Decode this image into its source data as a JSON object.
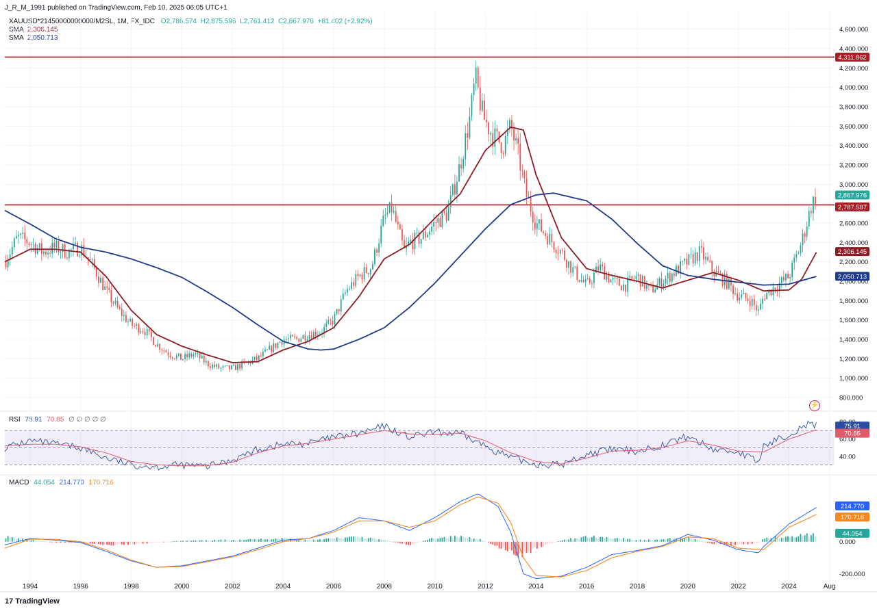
{
  "header": {
    "published": "J_R_M_1991 published on TradingView.com, Feb 10, 2025 06:05 UTC+1",
    "symbol": "XAUUSD*21450000000000/M2SL, 1M, FX_IDC",
    "ohlc": {
      "o": "O2,786.574",
      "h": "H2,875.596",
      "l": "L2,761.412",
      "c": "C2,867.976",
      "chg": "+81.402 (+2.92%)"
    },
    "sma1": {
      "label": "SMA",
      "value": "2,306.145"
    },
    "sma2": {
      "label": "SMA",
      "value": "2,050.713"
    }
  },
  "rsi_header": {
    "label": "RSI",
    "v1": "75.91",
    "v2": "70.85",
    "empties": "∅ ∅ ∅ ∅ ∅"
  },
  "macd_header": {
    "label": "MACD",
    "hist": "44.054",
    "macd": "214.770",
    "signal": "170.716"
  },
  "footer": {
    "logo": "TradingView"
  },
  "colors": {
    "up": "#26a69a",
    "down": "#ef5350",
    "sma_fast": "#8e1b23",
    "sma_slow": "#1f3a8a",
    "resistance": "#a61e26",
    "rsi": "#2b4f9e",
    "rsi_ma": "#e25a6a",
    "macd": "#2962ff",
    "signal": "#f6891f"
  },
  "chart_data": [
    {
      "type": "candlestick",
      "title": "XAUUSD*21450000000000/M2SL, 1M, FX_IDC",
      "y_axis_side": "right",
      "ylim": [
        680,
        4760
      ],
      "y_ticks": [
        "4,600.000",
        "4,400.000",
        "4,200.000",
        "4,000.000",
        "3,800.000",
        "3,600.000",
        "3,400.000",
        "3,200.000",
        "3,000.000",
        "2,600.000",
        "2,400.000",
        "2,200.000",
        "2,000.000",
        "1,800.000",
        "1,600.000",
        "1,400.000",
        "1,200.000",
        "1,000.000",
        "800.000"
      ],
      "x_ticks": [
        "1994",
        "1996",
        "1998",
        "2000",
        "2002",
        "2004",
        "2006",
        "2008",
        "2010",
        "2012",
        "2014",
        "2016",
        "2018",
        "2020",
        "2022",
        "2024",
        "Aug"
      ],
      "price_series_approx": {
        "x": [
          1993.0,
          1993.5,
          1994.0,
          1994.5,
          1995.0,
          1995.5,
          1996.0,
          1996.5,
          1997.0,
          1997.5,
          1998.0,
          1998.5,
          1999.0,
          1999.5,
          2000.0,
          2000.5,
          2001.0,
          2001.5,
          2002.0,
          2002.5,
          2003.0,
          2003.5,
          2004.0,
          2004.5,
          2005.0,
          2005.5,
          2006.0,
          2006.5,
          2007.0,
          2007.5,
          2008.0,
          2008.3,
          2008.8,
          2009.0,
          2009.5,
          2010.0,
          2010.5,
          2011.0,
          2011.4,
          2011.6,
          2011.9,
          2012.3,
          2012.7,
          2013.0,
          2013.3,
          2013.6,
          2014.0,
          2014.5,
          2015.0,
          2015.5,
          2016.0,
          2016.5,
          2017.0,
          2017.5,
          2018.0,
          2018.5,
          2019.0,
          2019.5,
          2020.0,
          2020.5,
          2021.0,
          2021.5,
          2022.0,
          2022.5,
          2022.8,
          2023.0,
          2023.5,
          2024.0,
          2024.5,
          2024.9,
          2025.1
        ],
        "values": [
          2200,
          2450,
          2400,
          2300,
          2350,
          2300,
          2350,
          2150,
          1900,
          1700,
          1550,
          1500,
          1350,
          1250,
          1200,
          1250,
          1150,
          1100,
          1100,
          1150,
          1200,
          1300,
          1400,
          1400,
          1450,
          1480,
          1600,
          1900,
          2050,
          2150,
          2650,
          2750,
          2300,
          2400,
          2450,
          2600,
          2700,
          3200,
          3700,
          4100,
          3700,
          3500,
          3400,
          3600,
          3300,
          2900,
          2600,
          2450,
          2300,
          2100,
          1950,
          2150,
          2000,
          1950,
          2050,
          1900,
          2000,
          2100,
          2200,
          2300,
          2100,
          2000,
          1850,
          1800,
          1680,
          1850,
          1950,
          2050,
          2400,
          2800,
          2870
        ]
      },
      "series": [
        {
          "name": "SMA",
          "last_value": 2306.145,
          "x": [
            1993.0,
            1994.0,
            1995.0,
            1996.0,
            1997.0,
            1998.0,
            1999.0,
            2000.0,
            2001.0,
            2002.0,
            2003.0,
            2004.0,
            2005.0,
            2006.0,
            2007.0,
            2008.0,
            2009.0,
            2010.0,
            2011.0,
            2012.0,
            2013.0,
            2013.5,
            2014.0,
            2015.0,
            2016.0,
            2017.0,
            2018.0,
            2019.0,
            2020.0,
            2021.0,
            2022.0,
            2023.0,
            2024.0,
            2024.5,
            2025.1
          ],
          "values": [
            2200,
            2330,
            2330,
            2300,
            2050,
            1700,
            1450,
            1330,
            1240,
            1160,
            1170,
            1290,
            1380,
            1520,
            1840,
            2230,
            2380,
            2650,
            2900,
            3350,
            3590,
            3560,
            3100,
            2450,
            2130,
            2060,
            2000,
            1930,
            2010,
            2090,
            2010,
            1900,
            1910,
            2020,
            2306
          ]
        },
        {
          "name": "SMA",
          "last_value": 2050.713,
          "x": [
            1993.0,
            1994.0,
            1995.0,
            1996.0,
            1997.0,
            1998.0,
            1999.0,
            2000.0,
            2001.0,
            2002.0,
            2003.0,
            2004.0,
            2005.0,
            2005.5,
            2006.0,
            2007.0,
            2008.0,
            2009.0,
            2010.0,
            2011.0,
            2012.0,
            2013.0,
            2014.0,
            2014.7,
            2015.0,
            2016.0,
            2017.0,
            2018.0,
            2019.0,
            2020.0,
            2021.0,
            2022.0,
            2023.0,
            2024.0,
            2025.1
          ],
          "values": [
            2730,
            2590,
            2440,
            2350,
            2300,
            2230,
            2140,
            2040,
            1890,
            1730,
            1550,
            1380,
            1300,
            1290,
            1300,
            1400,
            1520,
            1730,
            1980,
            2260,
            2540,
            2790,
            2890,
            2910,
            2890,
            2830,
            2640,
            2390,
            2160,
            2060,
            2020,
            1990,
            1960,
            1970,
            2050
          ]
        }
      ],
      "horizontal_levels": [
        {
          "label": "4,311.862",
          "value": 4311.862
        },
        {
          "label": "2,787.587",
          "value": 2787.587
        }
      ],
      "last_price": {
        "label": "2,867.976",
        "value": 2867.976
      },
      "price_tags": [
        "2,867.976",
        "2,787.587",
        "2,306.145",
        "2,050.713"
      ],
      "resistance_tags": [
        "4,311.862"
      ]
    },
    {
      "type": "line",
      "title": "RSI",
      "ylim": [
        20,
        90
      ],
      "y_ticks": [
        "80.00",
        "60.00",
        "40.00"
      ],
      "bands": [
        70,
        30
      ],
      "series": [
        {
          "name": "RSI",
          "last_value": 75.91,
          "x": [
            1993.0,
            1994.0,
            1995.0,
            1996.0,
            1997.0,
            1998.0,
            1999.0,
            2000.0,
            2001.0,
            2002.0,
            2003.0,
            2004.0,
            2005.0,
            2006.0,
            2007.0,
            2008.0,
            2009.0,
            2010.0,
            2011.0,
            2012.0,
            2013.0,
            2014.0,
            2015.0,
            2016.0,
            2017.0,
            2018.0,
            2019.0,
            2020.0,
            2021.0,
            2022.0,
            2022.8,
            2023.0,
            2024.0,
            2024.7,
            2025.1
          ],
          "values": [
            50,
            58,
            54,
            50,
            38,
            30,
            28,
            30,
            28,
            36,
            48,
            54,
            55,
            62,
            66,
            75,
            62,
            68,
            66,
            52,
            38,
            31,
            30,
            42,
            48,
            46,
            53,
            63,
            48,
            45,
            33,
            52,
            66,
            77,
            76
          ]
        },
        {
          "name": "RSI MA",
          "last_value": 70.85,
          "x": [
            1993.0,
            1994.0,
            1995.0,
            1996.0,
            1997.0,
            1998.0,
            1999.0,
            2000.0,
            2001.0,
            2002.0,
            2003.0,
            2004.0,
            2005.0,
            2006.0,
            2007.0,
            2008.0,
            2009.0,
            2010.0,
            2011.0,
            2012.0,
            2013.0,
            2014.0,
            2015.0,
            2016.0,
            2017.0,
            2018.0,
            2019.0,
            2020.0,
            2021.0,
            2022.0,
            2023.0,
            2024.0,
            2025.1
          ],
          "values": [
            52,
            54,
            54,
            51,
            44,
            34,
            30,
            29,
            29,
            33,
            44,
            52,
            55,
            60,
            65,
            70,
            66,
            65,
            67,
            58,
            44,
            34,
            31,
            38,
            46,
            47,
            50,
            58,
            53,
            46,
            45,
            60,
            71
          ]
        }
      ]
    },
    {
      "type": "line",
      "title": "MACD",
      "ylim": [
        -300,
        400
      ],
      "y_ticks": [
        "0.000",
        "-200.000"
      ],
      "series": [
        {
          "name": "MACD",
          "last_value": 214.77,
          "x": [
            1993.0,
            1994.0,
            1995.0,
            1996.0,
            1997.0,
            1998.0,
            1999.0,
            2000.0,
            2001.0,
            2002.0,
            2003.0,
            2004.0,
            2005.0,
            2006.0,
            2007.0,
            2008.0,
            2009.0,
            2010.0,
            2011.0,
            2011.7,
            2012.5,
            2013.0,
            2013.5,
            2014.0,
            2015.0,
            2016.0,
            2017.0,
            2018.0,
            2019.0,
            2020.0,
            2021.0,
            2022.0,
            2022.8,
            2023.0,
            2024.0,
            2025.1
          ],
          "values": [
            -20,
            20,
            10,
            -5,
            -60,
            -120,
            -160,
            -150,
            -120,
            -90,
            -40,
            10,
            20,
            70,
            150,
            130,
            70,
            150,
            250,
            300,
            220,
            60,
            -200,
            -230,
            -215,
            -160,
            -80,
            -55,
            -25,
            45,
            10,
            -50,
            -70,
            -30,
            110,
            215
          ]
        },
        {
          "name": "Signal",
          "last_value": 170.716,
          "x": [
            1993.0,
            1994.0,
            1995.0,
            1996.0,
            1997.0,
            1998.0,
            1999.0,
            2000.0,
            2001.0,
            2002.0,
            2003.0,
            2004.0,
            2005.0,
            2006.0,
            2007.0,
            2008.0,
            2009.0,
            2010.0,
            2011.0,
            2011.7,
            2012.5,
            2013.0,
            2013.5,
            2014.0,
            2015.0,
            2016.0,
            2017.0,
            2018.0,
            2019.0,
            2020.0,
            2021.0,
            2022.0,
            2023.0,
            2024.0,
            2025.1
          ],
          "values": [
            -40,
            15,
            15,
            0,
            -50,
            -115,
            -160,
            -155,
            -125,
            -95,
            -50,
            0,
            20,
            60,
            130,
            130,
            90,
            130,
            230,
            280,
            240,
            120,
            -100,
            -210,
            -220,
            -180,
            -100,
            -60,
            -30,
            30,
            20,
            -40,
            -50,
            90,
            171
          ]
        },
        {
          "name": "Histogram",
          "last_value": 44.054,
          "x": [
            1993.0,
            1994.0,
            1995.0,
            1996.0,
            1997.0,
            1998.0,
            1999.0,
            2000.0,
            2001.0,
            2002.0,
            2003.0,
            2004.0,
            2005.0,
            2006.0,
            2007.0,
            2008.0,
            2009.0,
            2010.0,
            2011.0,
            2011.7,
            2012.5,
            2013.0,
            2013.5,
            2014.0,
            2015.0,
            2016.0,
            2017.0,
            2018.0,
            2019.0,
            2020.0,
            2021.0,
            2022.0,
            2022.8,
            2023.0,
            2024.0,
            2025.1
          ],
          "values": [
            30,
            10,
            -5,
            -5,
            -20,
            -15,
            -5,
            5,
            8,
            12,
            15,
            20,
            10,
            20,
            30,
            10,
            -20,
            25,
            30,
            20,
            -30,
            -60,
            -90,
            -40,
            10,
            30,
            25,
            10,
            15,
            25,
            -15,
            -20,
            -10,
            20,
            35,
            44
          ]
        }
      ]
    }
  ]
}
